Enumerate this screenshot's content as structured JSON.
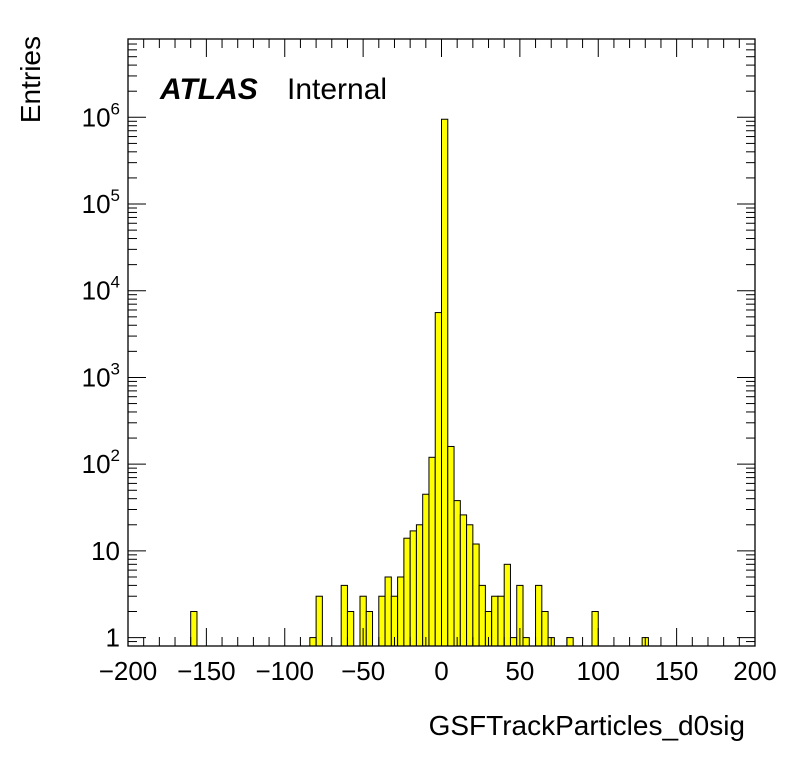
{
  "chart_data": {
    "type": "bar",
    "style": "histogram",
    "fill_color": "#ffff00",
    "line_color": "#000000",
    "xlabel": "GSFTrackParticles_d0sig",
    "ylabel": "Entries",
    "label_atlas": "ATLAS",
    "label_status": "Internal",
    "xlim": [
      -200,
      200
    ],
    "ylim": [
      0.8,
      8000000
    ],
    "log_y": true,
    "bin_width": 4,
    "x_ticks": [
      -200,
      -150,
      -100,
      -50,
      0,
      50,
      100,
      150,
      200
    ],
    "x_tick_labels": [
      "−200",
      "−150",
      "−100",
      "−50",
      "0",
      "50",
      "100",
      "150",
      "200"
    ],
    "y_ticks": [
      {
        "value": 1,
        "base": "1",
        "exp": ""
      },
      {
        "value": 10,
        "base": "10",
        "exp": ""
      },
      {
        "value": 100,
        "base": "10",
        "exp": "2"
      },
      {
        "value": 1000,
        "base": "10",
        "exp": "3"
      },
      {
        "value": 10000,
        "base": "10",
        "exp": "4"
      },
      {
        "value": 100000,
        "base": "10",
        "exp": "5"
      },
      {
        "value": 1000000,
        "base": "10",
        "exp": "6"
      }
    ],
    "bins": [
      {
        "x0": -160,
        "value": 2
      },
      {
        "x0": -84,
        "value": 1
      },
      {
        "x0": -80,
        "value": 3
      },
      {
        "x0": -64,
        "value": 4
      },
      {
        "x0": -60,
        "value": 2
      },
      {
        "x0": -52,
        "value": 3
      },
      {
        "x0": -48,
        "value": 2
      },
      {
        "x0": -40,
        "value": 3
      },
      {
        "x0": -36,
        "value": 5
      },
      {
        "x0": -32,
        "value": 3
      },
      {
        "x0": -28,
        "value": 5
      },
      {
        "x0": -24,
        "value": 14
      },
      {
        "x0": -20,
        "value": 17
      },
      {
        "x0": -16,
        "value": 20
      },
      {
        "x0": -12,
        "value": 45
      },
      {
        "x0": -8,
        "value": 120
      },
      {
        "x0": -4,
        "value": 5600
      },
      {
        "x0": 0,
        "value": 950000
      },
      {
        "x0": 4,
        "value": 160
      },
      {
        "x0": 8,
        "value": 38
      },
      {
        "x0": 12,
        "value": 26
      },
      {
        "x0": 16,
        "value": 20
      },
      {
        "x0": 20,
        "value": 12
      },
      {
        "x0": 24,
        "value": 4
      },
      {
        "x0": 28,
        "value": 2
      },
      {
        "x0": 32,
        "value": 3
      },
      {
        "x0": 36,
        "value": 3
      },
      {
        "x0": 40,
        "value": 7
      },
      {
        "x0": 44,
        "value": 1
      },
      {
        "x0": 48,
        "value": 4
      },
      {
        "x0": 52,
        "value": 1
      },
      {
        "x0": 60,
        "value": 4
      },
      {
        "x0": 64,
        "value": 2
      },
      {
        "x0": 68,
        "value": 1
      },
      {
        "x0": 80,
        "value": 1
      },
      {
        "x0": 96,
        "value": 2
      },
      {
        "x0": 128,
        "value": 1
      }
    ]
  }
}
